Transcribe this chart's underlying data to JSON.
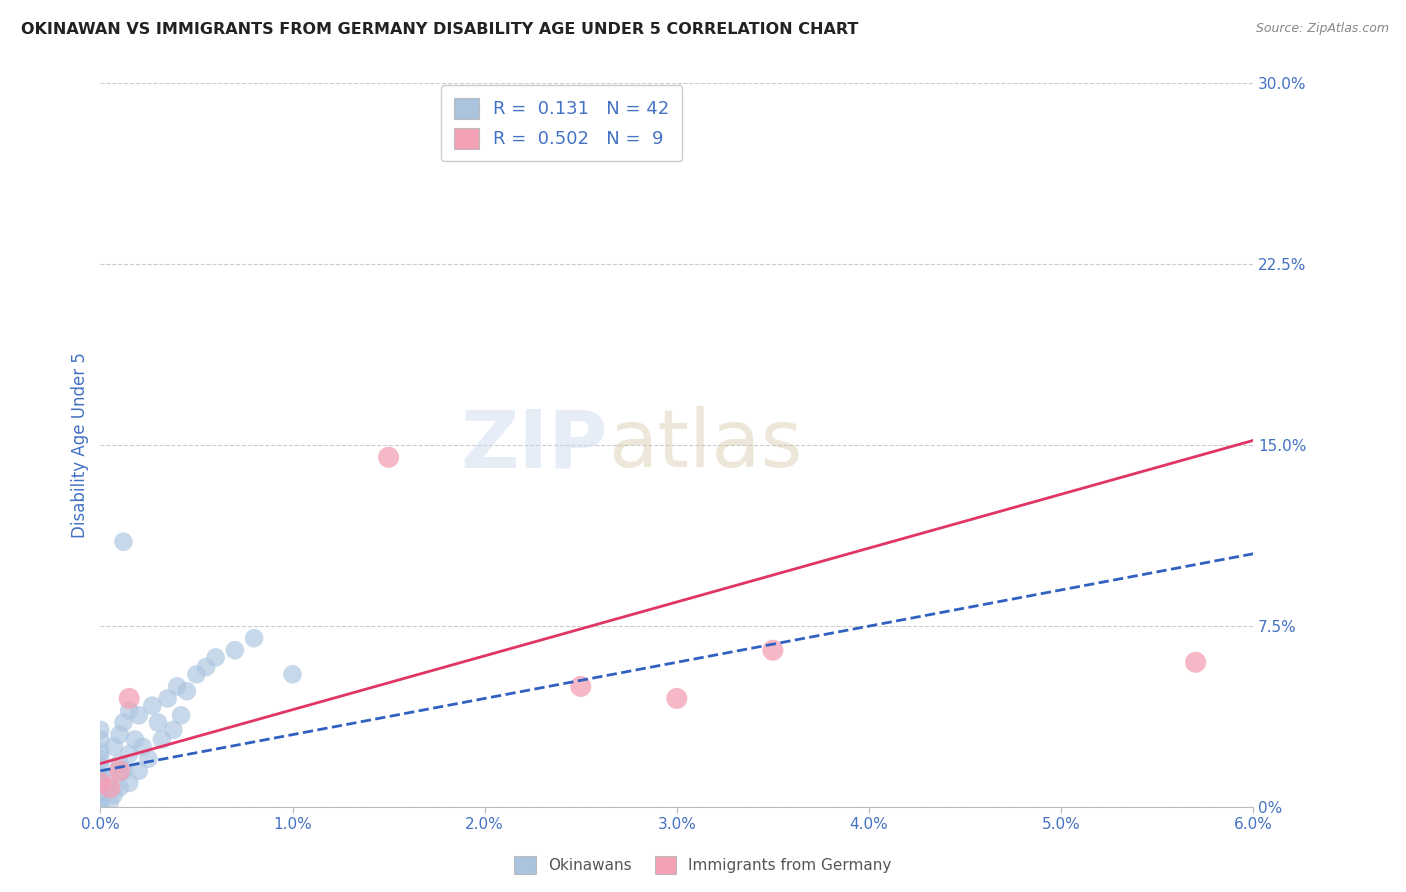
{
  "title": "OKINAWAN VS IMMIGRANTS FROM GERMANY DISABILITY AGE UNDER 5 CORRELATION CHART",
  "source": "Source: ZipAtlas.com",
  "ylabel": "Disability Age Under 5",
  "xlabel_ticks": [
    "0.0%",
    "1.0%",
    "2.0%",
    "3.0%",
    "4.0%",
    "5.0%",
    "6.0%"
  ],
  "xlabel_vals": [
    0.0,
    1.0,
    2.0,
    3.0,
    4.0,
    5.0,
    6.0
  ],
  "ylabel_ticks": [
    "0%",
    "7.5%",
    "15.0%",
    "22.5%",
    "30.0%"
  ],
  "ylabel_vals": [
    0.0,
    7.5,
    15.0,
    22.5,
    30.0
  ],
  "xlim": [
    0.0,
    6.0
  ],
  "ylim": [
    0.0,
    30.0
  ],
  "r_okinawan": 0.131,
  "n_okinawan": 42,
  "r_german": 0.502,
  "n_german": 9,
  "okinawan_color": "#aac4e0",
  "german_color": "#f4a0b5",
  "okinawan_line_color": "#3060c0",
  "german_line_color": "#e03565",
  "legend_label_okinawan": "Okinawans",
  "legend_label_german": "Immigrants from Germany",
  "okinawan_x": [
    0.0,
    0.0,
    0.0,
    0.0,
    0.0,
    0.0,
    0.0,
    0.0,
    0.0,
    0.0,
    0.05,
    0.05,
    0.07,
    0.07,
    0.1,
    0.1,
    0.1,
    0.12,
    0.12,
    0.15,
    0.15,
    0.15,
    0.18,
    0.2,
    0.2,
    0.22,
    0.25,
    0.27,
    0.3,
    0.32,
    0.35,
    0.38,
    0.4,
    0.42,
    0.45,
    0.5,
    0.55,
    0.6,
    0.7,
    0.8,
    0.12,
    1.0
  ],
  "okinawan_y": [
    0.0,
    0.3,
    0.6,
    1.0,
    1.3,
    1.7,
    2.0,
    2.3,
    2.8,
    3.2,
    0.2,
    1.2,
    0.5,
    2.5,
    0.8,
    1.8,
    3.0,
    1.5,
    3.5,
    1.0,
    2.2,
    4.0,
    2.8,
    1.5,
    3.8,
    2.5,
    2.0,
    4.2,
    3.5,
    2.8,
    4.5,
    3.2,
    5.0,
    3.8,
    4.8,
    5.5,
    5.8,
    6.2,
    6.5,
    7.0,
    11.0,
    5.5
  ],
  "german_x": [
    0.0,
    0.05,
    0.1,
    0.15,
    1.5,
    2.5,
    3.0,
    3.5,
    5.7
  ],
  "german_y": [
    1.0,
    0.8,
    1.5,
    4.5,
    14.5,
    5.0,
    4.5,
    6.5,
    6.0
  ],
  "okinawan_line": [
    0.0,
    6.0,
    1.5,
    10.5
  ],
  "german_line": [
    0.0,
    6.0,
    1.8,
    15.2
  ],
  "background_color": "#ffffff",
  "plot_bg_color": "#ffffff",
  "grid_color": "#cccccc",
  "title_color": "#222222",
  "axis_label_color": "#4472c4",
  "tick_label_color": "#4472c4"
}
